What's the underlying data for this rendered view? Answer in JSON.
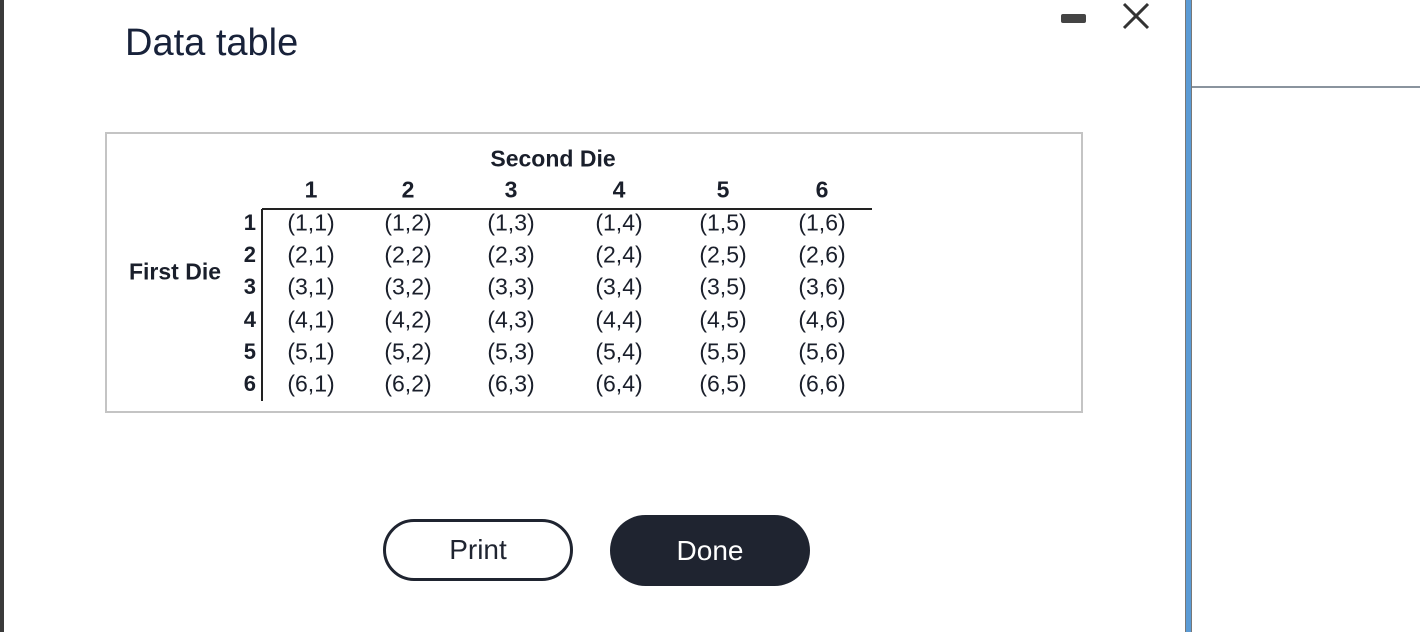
{
  "dialog": {
    "title": "Data table"
  },
  "table": {
    "column_header": "Second Die",
    "row_header": "First Die",
    "columns": [
      "1",
      "2",
      "3",
      "4",
      "5",
      "6"
    ],
    "rows": [
      {
        "label": "1",
        "cells": [
          "(1,1)",
          "(1,2)",
          "(1,3)",
          "(1,4)",
          "(1,5)",
          "(1,6)"
        ]
      },
      {
        "label": "2",
        "cells": [
          "(2,1)",
          "(2,2)",
          "(2,3)",
          "(2,4)",
          "(2,5)",
          "(2,6)"
        ]
      },
      {
        "label": "3",
        "cells": [
          "(3,1)",
          "(3,2)",
          "(3,3)",
          "(3,4)",
          "(3,5)",
          "(3,6)"
        ]
      },
      {
        "label": "4",
        "cells": [
          "(4,1)",
          "(4,2)",
          "(4,3)",
          "(4,4)",
          "(4,5)",
          "(4,6)"
        ]
      },
      {
        "label": "5",
        "cells": [
          "(5,1)",
          "(5,2)",
          "(5,3)",
          "(5,4)",
          "(5,5)",
          "(5,6)"
        ]
      },
      {
        "label": "6",
        "cells": [
          "(6,1)",
          "(6,2)",
          "(6,3)",
          "(6,4)",
          "(6,5)",
          "(6,6)"
        ]
      }
    ]
  },
  "buttons": {
    "print": "Print",
    "done": "Done"
  }
}
